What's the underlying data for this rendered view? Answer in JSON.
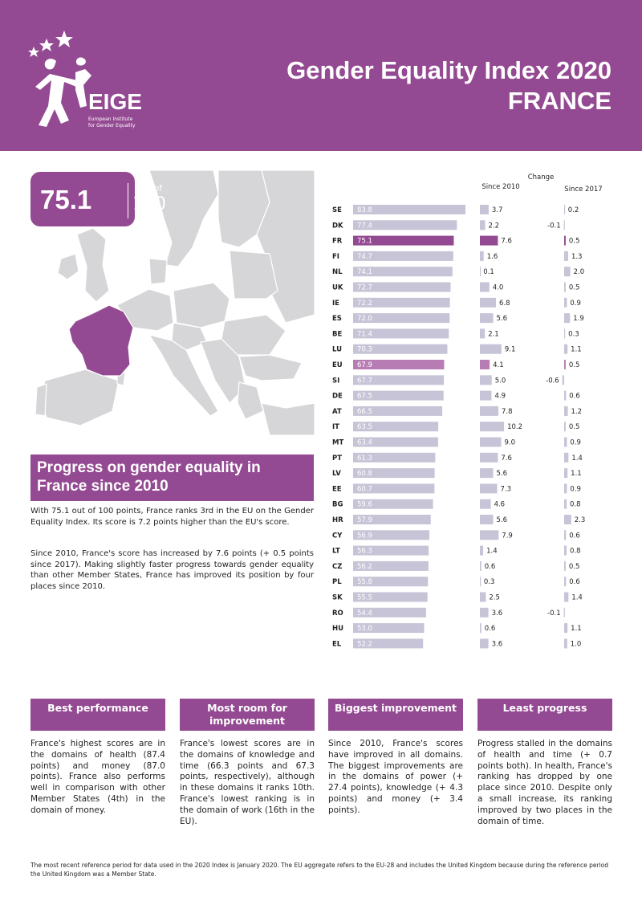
{
  "header": {
    "title_line1": "Gender Equality Index 2020",
    "title_line2": "FRANCE",
    "logo_text": "EIGE",
    "logo_subtitle_1": "European Institute",
    "logo_subtitle_2": "for Gender Equality",
    "background_color": "#944a92"
  },
  "score": {
    "value": "75.1",
    "out_of_label": "out of",
    "max": "100"
  },
  "chart_data": {
    "type": "bar",
    "title": "Change",
    "headers": {
      "since2010": "Since 2010",
      "since2017": "Since 2017"
    },
    "highlight": {
      "FR": "#944a92",
      "EU": "#b87cb4"
    },
    "categories": [
      "SE",
      "DK",
      "FR",
      "FI",
      "NL",
      "UK",
      "IE",
      "ES",
      "BE",
      "LU",
      "EU",
      "SI",
      "DE",
      "AT",
      "IT",
      "MT",
      "PT",
      "LV",
      "EE",
      "BG",
      "HR",
      "CY",
      "LT",
      "CZ",
      "PL",
      "SK",
      "RO",
      "HU",
      "EL"
    ],
    "score_labels": [
      "83.8",
      "77.4",
      "75.1",
      "74.7",
      "74.1",
      "72.7",
      "72.2",
      "72.0",
      "71.4",
      "70.3",
      "67.9",
      "67.7",
      "67.5",
      "66.5",
      "63.5",
      "63.4",
      "61.3",
      "60.8",
      "60.7",
      "59.6",
      "57.9",
      "56.9",
      "56.3",
      "56.2",
      "55.8",
      "55.5",
      "54.4",
      "53.0",
      "52.2"
    ],
    "scores": [
      83.8,
      77.4,
      75.1,
      74.7,
      74.1,
      72.7,
      72.2,
      72.0,
      71.4,
      70.3,
      67.9,
      67.7,
      67.5,
      66.5,
      63.5,
      63.4,
      61.3,
      60.8,
      60.7,
      59.6,
      57.9,
      56.9,
      56.3,
      56.2,
      55.8,
      55.5,
      54.4,
      53.0,
      52.2
    ],
    "change_2010_labels": [
      "3.7",
      "2.2",
      "7.6",
      "1.6",
      "0.1",
      "4.0",
      "6.8",
      "5.6",
      "2.1",
      "9.1",
      "4.1",
      "5.0",
      "4.9",
      "7.8",
      "10.2",
      "9.0",
      "7.6",
      "5.6",
      "7.3",
      "4.6",
      "5.6",
      "7.9",
      "1.4",
      "0.6",
      "0.3",
      "2.5",
      "3.6",
      "0.6",
      "3.6"
    ],
    "change_2010": [
      3.7,
      2.2,
      7.6,
      1.6,
      0.1,
      4.0,
      6.8,
      5.6,
      2.1,
      9.1,
      4.1,
      5.0,
      4.9,
      7.8,
      10.2,
      9.0,
      7.6,
      5.6,
      7.3,
      4.6,
      5.6,
      7.9,
      1.4,
      0.6,
      0.3,
      2.5,
      3.6,
      0.6,
      3.6
    ],
    "change_2017_labels": [
      "0.2",
      "-0.1",
      "0.5",
      "1.3",
      "2.0",
      "0.5",
      "0.9",
      "1.9",
      "0.3",
      "1.1",
      "0.5",
      "-0.6",
      "0.6",
      "1.2",
      "0.5",
      "0.9",
      "1.4",
      "1.1",
      "0.9",
      "0.8",
      "2.3",
      "0.6",
      "0.8",
      "0.5",
      "0.6",
      "1.4",
      "-0.1",
      "1.1",
      "1.0"
    ],
    "change_2017": [
      0.2,
      -0.1,
      0.5,
      1.3,
      2.0,
      0.5,
      0.9,
      1.9,
      0.3,
      1.1,
      0.5,
      -0.6,
      0.6,
      1.2,
      0.5,
      0.9,
      1.4,
      1.1,
      0.9,
      0.8,
      2.3,
      0.6,
      0.8,
      0.5,
      0.6,
      1.4,
      -0.1,
      1.1,
      1.0
    ]
  },
  "progress": {
    "heading": "Progress on gender equality in France since 2010",
    "para1": "With 75.1 out of 100 points, France ranks 3rd in the EU on the Gender Equality Index. Its score is 7.2 points higher than the EU's score.",
    "para2": "Since 2010, France's score has increased by 7.6 points (+ 0.5 points since 2017). Making slightly faster progress towards gender equality than other Member States, France has improved its position by four places since 2010."
  },
  "boxes": [
    {
      "title": "Best performance",
      "text": "France's highest scores are in the domains of health (87.4 points) and money (87.0 points). France also performs well in comparison with other Member States (4th) in the domain of money."
    },
    {
      "title": "Most room for improvement",
      "text": "France's lowest scores are in the domains of knowledge and time (66.3 points and 67.3 points, respectively), although in these domains it ranks 10th. France's lowest ranking is in the domain of work (16th in the EU)."
    },
    {
      "title": "Biggest improvement",
      "text": "Since 2010, France's scores have improved in all domains. The biggest improvements are in the domains of power (+ 27.4 points), knowledge (+ 4.3 points) and money (+ 3.4 points)."
    },
    {
      "title": "Least progress",
      "text": "Progress stalled in the domains of health and time (+ 0.7 points both). In health, France's ranking has dropped by one place since 2010. Despite only a small increase, its ranking improved by two places in the domain of time."
    }
  ],
  "footnote": "The most recent reference period for data used in the 2020 Index is January 2020. The EU aggregate refers to the EU-28 and includes the United Kingdom because during the reference period the United Kingdom was a Member State."
}
